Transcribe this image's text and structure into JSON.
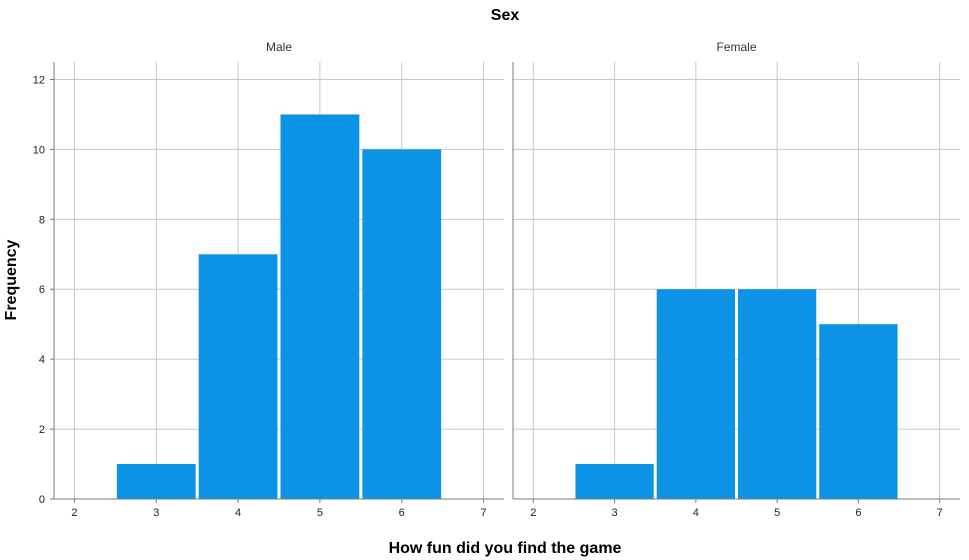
{
  "chart_data": {
    "type": "bar",
    "title": "Sex",
    "xlabel": "How fun did you find the game",
    "ylabel": "Frequency",
    "xlim": [
      1.75,
      7.25
    ],
    "ylim": [
      0,
      12.5
    ],
    "xticks": [
      2,
      3,
      4,
      5,
      6,
      7
    ],
    "yticks": [
      0,
      2,
      4,
      6,
      8,
      10,
      12
    ],
    "grid": true,
    "bar_color": "#0c93e6",
    "panels": [
      {
        "label": "Male",
        "bins": [
          {
            "start": 2.5,
            "end": 3.5,
            "value": 1
          },
          {
            "start": 3.5,
            "end": 4.5,
            "value": 7
          },
          {
            "start": 4.5,
            "end": 5.5,
            "value": 11
          },
          {
            "start": 5.5,
            "end": 6.5,
            "value": 10
          }
        ]
      },
      {
        "label": "Female",
        "bins": [
          {
            "start": 2.5,
            "end": 3.5,
            "value": 1
          },
          {
            "start": 3.5,
            "end": 4.5,
            "value": 6
          },
          {
            "start": 4.5,
            "end": 5.5,
            "value": 6
          },
          {
            "start": 5.5,
            "end": 6.5,
            "value": 5
          }
        ]
      }
    ]
  }
}
